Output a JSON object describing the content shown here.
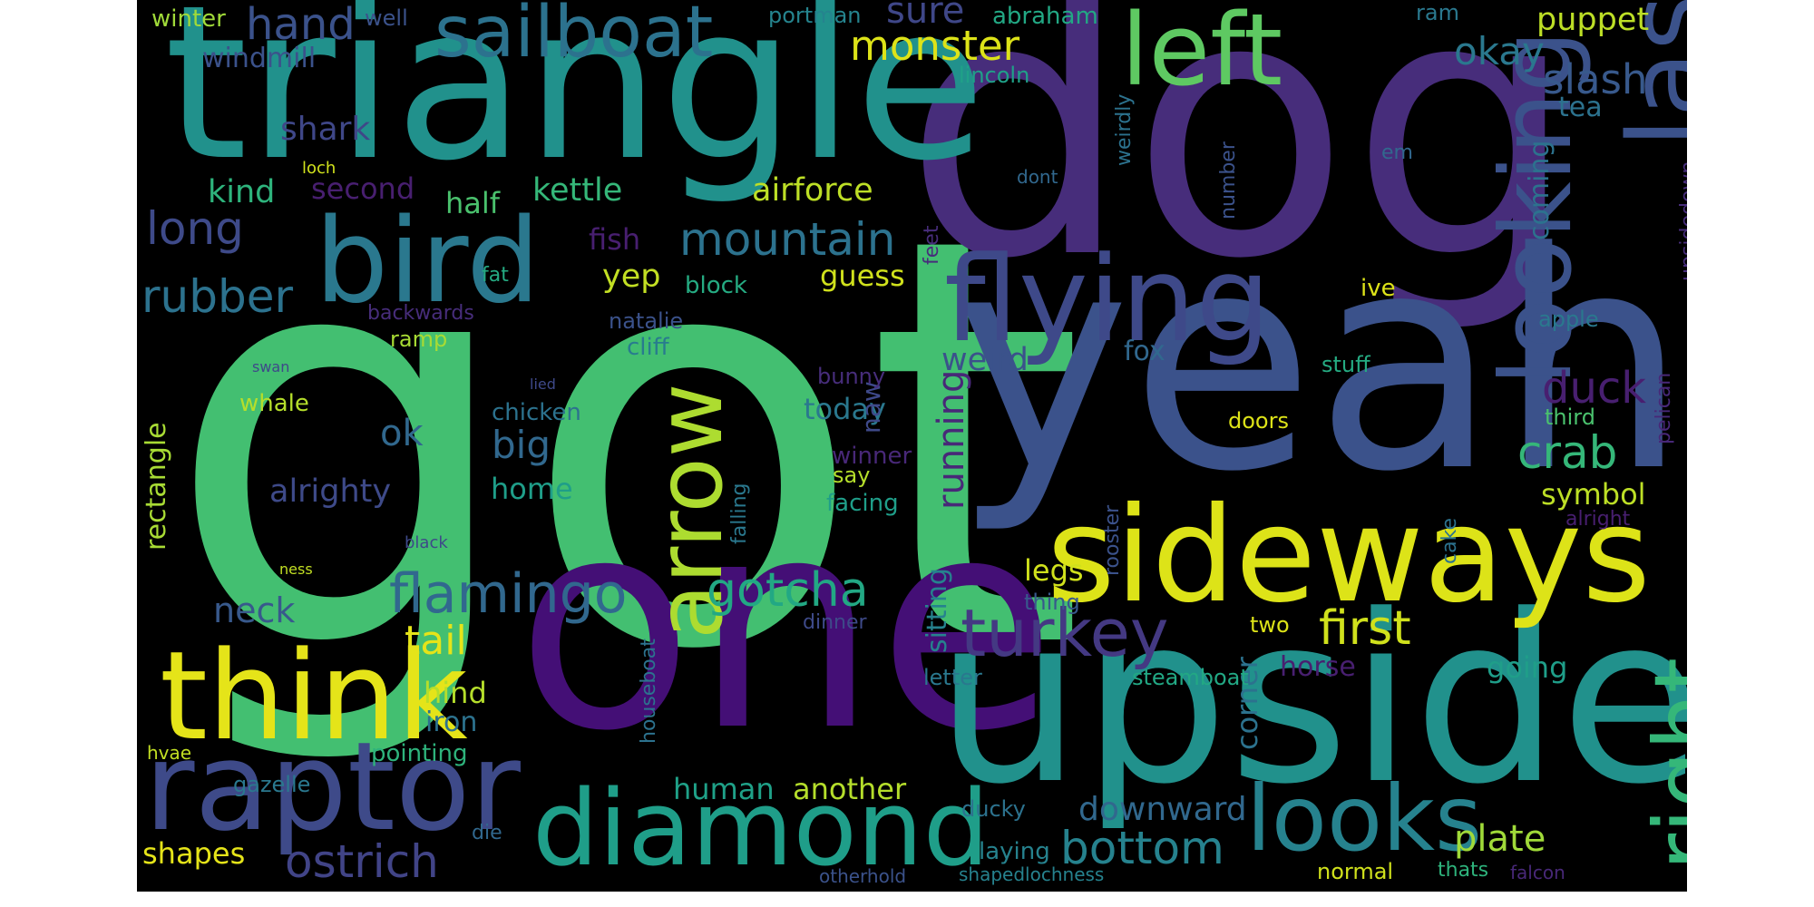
{
  "colors": {
    "background": "#000000",
    "page": "#ffffff"
  },
  "words": [
    {
      "text": "got",
      "color": "#43bf71"
    },
    {
      "text": "dog",
      "color": "#472d7b"
    },
    {
      "text": "yeah",
      "color": "#3b528b"
    },
    {
      "text": "one",
      "color": "#440f76"
    },
    {
      "text": "triangle",
      "color": "#21918c"
    },
    {
      "text": "upside",
      "color": "#21918c"
    },
    {
      "text": "sideways",
      "color": "#dde318"
    },
    {
      "text": "think",
      "color": "#e5e419"
    },
    {
      "text": "raptor",
      "color": "#3e4a89"
    },
    {
      "text": "diamond",
      "color": "#1f9e89"
    },
    {
      "text": "bird",
      "color": "#2a788e"
    },
    {
      "text": "flying",
      "color": "#3e4989"
    },
    {
      "text": "last",
      "color": "#3b528b"
    },
    {
      "text": "left",
      "color": "#5ec962"
    },
    {
      "text": "looking",
      "color": "#3b528b"
    },
    {
      "text": "arrow",
      "color": "#addc30"
    },
    {
      "text": "right",
      "color": "#35b779"
    },
    {
      "text": "looks",
      "color": "#26828e"
    },
    {
      "text": "sailboat",
      "color": "#2c728e"
    },
    {
      "text": "turkey",
      "color": "#443983"
    },
    {
      "text": "flamingo",
      "color": "#31688e"
    },
    {
      "text": "mountain",
      "color": "#2c728e"
    },
    {
      "text": "gotcha",
      "color": "#22a884"
    },
    {
      "text": "monster",
      "color": "#dde318"
    },
    {
      "text": "first",
      "color": "#d0e11c"
    },
    {
      "text": "rubber",
      "color": "#2c728e"
    },
    {
      "text": "bottom",
      "color": "#26828e"
    },
    {
      "text": "ostrich",
      "color": "#414487"
    },
    {
      "text": "hand",
      "color": "#3b528b"
    },
    {
      "text": "long",
      "color": "#3e4a89"
    },
    {
      "text": "crab",
      "color": "#35b779"
    },
    {
      "text": "duck",
      "color": "#481f70"
    },
    {
      "text": "slash",
      "color": "#38598c"
    },
    {
      "text": "okay",
      "color": "#2a788e"
    },
    {
      "text": "sure",
      "color": "#3f4788"
    },
    {
      "text": "big",
      "color": "#31688e"
    },
    {
      "text": "neck",
      "color": "#38598c"
    },
    {
      "text": "tail",
      "color": "#e5e419"
    },
    {
      "text": "running",
      "color": "#482878"
    },
    {
      "text": "plate",
      "color": "#a0da39"
    },
    {
      "text": "downward",
      "color": "#31688e"
    },
    {
      "text": "shark",
      "color": "#3f4788"
    },
    {
      "text": "puppet",
      "color": "#bddf26"
    },
    {
      "text": "airforce",
      "color": "#bddf26"
    },
    {
      "text": "kettle",
      "color": "#35b779"
    },
    {
      "text": "yep",
      "color": "#c2df23"
    },
    {
      "text": "guess",
      "color": "#d0e11c"
    },
    {
      "text": "ok",
      "color": "#31688e"
    },
    {
      "text": "weird",
      "color": "#3b528b"
    },
    {
      "text": "today",
      "color": "#2a788e"
    },
    {
      "text": "alrighty",
      "color": "#3e4a89"
    },
    {
      "text": "human",
      "color": "#1fa188"
    },
    {
      "text": "another",
      "color": "#b5de2b"
    },
    {
      "text": "shapes",
      "color": "#e5e419"
    },
    {
      "text": "legs",
      "color": "#d0e11c"
    },
    {
      "text": "symbol",
      "color": "#bddf26"
    },
    {
      "text": "going",
      "color": "#1f9e89"
    },
    {
      "text": "kind",
      "color": "#2eb37c"
    },
    {
      "text": "second",
      "color": "#481f70"
    },
    {
      "text": "half",
      "color": "#4ac16d"
    },
    {
      "text": "fish",
      "color": "#481f70"
    },
    {
      "text": "hind",
      "color": "#b5de2b"
    },
    {
      "text": "iron",
      "color": "#2c728e"
    },
    {
      "text": "home",
      "color": "#1f9e89"
    },
    {
      "text": "windmill",
      "color": "#3b528b"
    },
    {
      "text": "horse",
      "color": "#481f70"
    },
    {
      "text": "fox",
      "color": "#31688e"
    },
    {
      "text": "tea",
      "color": "#2c728e"
    },
    {
      "text": "corner",
      "color": "#2c728e"
    },
    {
      "text": "sitting",
      "color": "#26828e"
    },
    {
      "text": "coming",
      "color": "#2c728e"
    },
    {
      "text": "rectangle",
      "color": "#a8db34"
    },
    {
      "text": "pointing",
      "color": "#2eb37c"
    },
    {
      "text": "steamboat",
      "color": "#22a884"
    },
    {
      "text": "naw",
      "color": "#3e4989"
    },
    {
      "text": "laying",
      "color": "#26828e"
    },
    {
      "text": "winter",
      "color": "#a0da39"
    },
    {
      "text": "abraham",
      "color": "#22a884"
    },
    {
      "text": "portman",
      "color": "#25848e"
    },
    {
      "text": "lincoln",
      "color": "#1fa188"
    },
    {
      "text": "ram",
      "color": "#2a788e"
    },
    {
      "text": "well",
      "color": "#3b528b"
    },
    {
      "text": "block",
      "color": "#25ab82"
    },
    {
      "text": "natalie",
      "color": "#3b528b"
    },
    {
      "text": "cliff",
      "color": "#287c8e"
    },
    {
      "text": "ramp",
      "color": "#a8db34"
    },
    {
      "text": "whale",
      "color": "#b5de2b"
    },
    {
      "text": "chicken",
      "color": "#2c728e"
    },
    {
      "text": "bunny",
      "color": "#472d7b"
    },
    {
      "text": "say",
      "color": "#b5de2b"
    },
    {
      "text": "facing",
      "color": "#1f9e89"
    },
    {
      "text": "winner",
      "color": "#482878"
    },
    {
      "text": "stuff",
      "color": "#25ab82"
    },
    {
      "text": "apple",
      "color": "#2a788e"
    },
    {
      "text": "third",
      "color": "#4ac16d"
    },
    {
      "text": "doors",
      "color": "#dde318"
    },
    {
      "text": "ive",
      "color": "#dde318"
    },
    {
      "text": "em",
      "color": "#31688e"
    },
    {
      "text": "cake",
      "color": "#2c728e"
    },
    {
      "text": "number",
      "color": "#3b528b"
    },
    {
      "text": "weirdly",
      "color": "#2c728e"
    },
    {
      "text": "dont",
      "color": "#31688e"
    },
    {
      "text": "feet",
      "color": "#472d7b"
    },
    {
      "text": "rooster",
      "color": "#3b528b"
    },
    {
      "text": "falling",
      "color": "#2a788e"
    },
    {
      "text": "houseboat",
      "color": "#2c728e"
    },
    {
      "text": "upsidedown",
      "color": "#472d7b"
    },
    {
      "text": "pelican",
      "color": "#482878"
    },
    {
      "text": "alright",
      "color": "#481f70"
    },
    {
      "text": "letter",
      "color": "#2a788e"
    },
    {
      "text": "thing",
      "color": "#38598c"
    },
    {
      "text": "two",
      "color": "#dde318"
    },
    {
      "text": "dinner",
      "color": "#3e4a89"
    },
    {
      "text": "ducky",
      "color": "#2c728e"
    },
    {
      "text": "die",
      "color": "#31688e"
    },
    {
      "text": "normal",
      "color": "#d0e11c"
    },
    {
      "text": "thats",
      "color": "#2eb37c"
    },
    {
      "text": "falcon",
      "color": "#482878"
    },
    {
      "text": "otherhold",
      "color": "#3b528b"
    },
    {
      "text": "shapedlochness",
      "color": "#26828e"
    },
    {
      "text": "gazelle",
      "color": "#2a788e"
    },
    {
      "text": "hvae",
      "color": "#c2df23"
    },
    {
      "text": "backwards",
      "color": "#472d7b"
    },
    {
      "text": "fat",
      "color": "#25ab82"
    },
    {
      "text": "swan",
      "color": "#3e4989"
    },
    {
      "text": "lied",
      "color": "#3e4989"
    },
    {
      "text": "black",
      "color": "#3e4989"
    },
    {
      "text": "ness",
      "color": "#c2df23"
    },
    {
      "text": "loch",
      "color": "#d0e11c"
    }
  ]
}
